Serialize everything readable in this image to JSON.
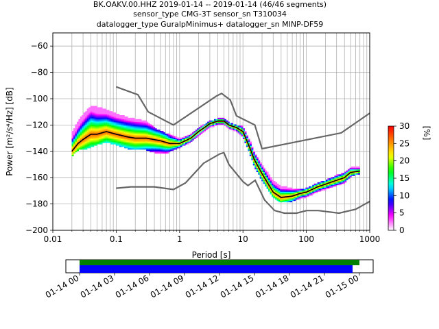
{
  "title_lines": [
    "BK.OAKV.00.HHZ   2019-01-14 -- 2019-01-14  (46/46 segments)",
    "sensor_type CMG-3T sensor_sn T310034",
    "datalogger_type GuralpMinimus+ datalogger_sn MINP-DF59"
  ],
  "colorbar": {
    "label": "[%]",
    "ticks": [
      "0",
      "5",
      "10",
      "15",
      "20",
      "25",
      "30"
    ],
    "range": [
      0,
      30
    ],
    "colors": [
      "#ffffff",
      "#ff00ff",
      "#0000ff",
      "#00ffff",
      "#00ff00",
      "#ffff00",
      "#ff8000",
      "#ff0000"
    ]
  },
  "timeline": {
    "tick_labels": [
      "01-14 00",
      "01-14 03",
      "01-14 06",
      "01-14 09",
      "01-14 12",
      "01-14 15",
      "01-14 18",
      "01-14 21",
      "01-15 00"
    ],
    "green_bar_color": "#008000",
    "blue_bar_color": "#0000ff"
  },
  "chart_data": {
    "type": "line",
    "title": "BK.OAKV.00.HHZ   2019-01-14 -- 2019-01-14  (46/46 segments)",
    "xlabel": "Period [s]",
    "ylabel": "Power [m²/s⁴/Hz] [dB]",
    "xscale": "log",
    "xlim": [
      0.01,
      1000
    ],
    "ylim": [
      -200,
      -50
    ],
    "xtick_labels": [
      "0.01",
      "0.1",
      "1",
      "10",
      "100",
      "1000"
    ],
    "ytick_labels": [
      "−60",
      "−80",
      "−100",
      "−120",
      "−140",
      "−160",
      "−180",
      "−200"
    ],
    "yticks": [
      -60,
      -80,
      -100,
      -120,
      -140,
      -160,
      -180,
      -200
    ],
    "grid": true,
    "series": [
      {
        "role": "mean",
        "color": "#000000",
        "x": [
          0.02,
          0.025,
          0.03,
          0.04,
          0.05,
          0.07,
          0.1,
          0.15,
          0.2,
          0.3,
          0.5,
          0.7,
          1,
          1.5,
          2,
          3,
          4,
          5,
          6,
          8,
          10,
          13,
          15,
          20,
          30,
          40,
          60,
          80,
          100,
          150,
          200,
          300,
          400,
          500,
          700
        ],
        "y": [
          -140,
          -134,
          -131,
          -127,
          -127,
          -125,
          -127,
          -129,
          -130,
          -130,
          -132,
          -134,
          -134,
          -130,
          -125,
          -119,
          -117,
          -117,
          -120,
          -122,
          -125,
          -138,
          -146,
          -157,
          -171,
          -175,
          -174,
          -172,
          -171,
          -167,
          -165,
          -162,
          -160,
          -156,
          -155
        ]
      },
      {
        "role": "new-high-noise-model",
        "color": "#666666",
        "x": [
          0.1,
          0.22,
          0.32,
          0.8,
          3.8,
          4.6,
          6.3,
          7.9,
          15.4,
          20,
          354.8,
          1000
        ],
        "y": [
          -91,
          -97,
          -110,
          -120,
          -98,
          -96,
          -101,
          -113,
          -120,
          -138,
          -126,
          -111
        ]
      },
      {
        "role": "new-low-noise-model",
        "color": "#666666",
        "x": [
          0.1,
          0.17,
          0.4,
          0.8,
          1.24,
          2.4,
          4.3,
          5,
          6,
          10,
          12,
          15.6,
          21.9,
          31.6,
          45,
          70,
          101,
          154,
          328,
          600,
          1000
        ],
        "y": [
          -168,
          -167,
          -167,
          -169,
          -164,
          -149,
          -142,
          -141,
          -150,
          -163,
          -166,
          -162,
          -177,
          -185,
          -187,
          -187,
          -185,
          -185,
          -187,
          -184,
          -178
        ]
      }
    ],
    "density": {
      "colormap_range_percent": [
        0,
        30
      ],
      "bands": [
        {
          "x": [
            0.02,
            0.025,
            0.03,
            0.04,
            0.05,
            0.07,
            0.1,
            0.15,
            0.2,
            0.3,
            0.4,
            0.6,
            0.8,
            1,
            1.5,
            2,
            3,
            4,
            5,
            6,
            8,
            10,
            13,
            15,
            20,
            30,
            40,
            60,
            80,
            100,
            150,
            200,
            300,
            400,
            500,
            700
          ],
          "low": [
            -143,
            -138,
            -138,
            -136,
            -134,
            -132,
            -134,
            -137,
            -138,
            -138,
            -140,
            -141,
            -138,
            -136,
            -132,
            -127,
            -121,
            -119,
            -119,
            -122,
            -124,
            -128,
            -141,
            -150,
            -161,
            -174,
            -178,
            -177,
            -175,
            -174,
            -170,
            -168,
            -165,
            -163,
            -158,
            -156
          ],
          "high": [
            -126,
            -117,
            -112,
            -105,
            -106,
            -108,
            -111,
            -114,
            -115,
            -117,
            -122,
            -126,
            -128,
            -130,
            -127,
            -122,
            -117,
            -115,
            -115,
            -118,
            -120,
            -121,
            -132,
            -140,
            -150,
            -162,
            -166,
            -168,
            -169,
            -168,
            -164,
            -162,
            -158,
            -156,
            -152,
            -152
          ]
        }
      ]
    }
  }
}
